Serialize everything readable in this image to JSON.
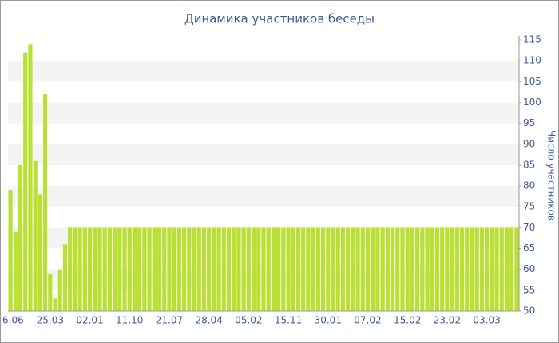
{
  "chart_data": {
    "type": "bar",
    "title": "Динамика участников беседы",
    "y_axis_label": "Число участников",
    "categories": [
      "6.06",
      null,
      null,
      null,
      null,
      null,
      null,
      null,
      "25.03",
      null,
      null,
      null,
      null,
      null,
      null,
      null,
      "02.01",
      null,
      null,
      null,
      null,
      null,
      null,
      null,
      "11.10",
      null,
      null,
      null,
      null,
      null,
      null,
      null,
      "21.07",
      null,
      null,
      null,
      null,
      null,
      null,
      null,
      "28.04",
      null,
      null,
      null,
      null,
      null,
      null,
      null,
      "05.02",
      null,
      null,
      null,
      null,
      null,
      null,
      null,
      "15.11",
      null,
      null,
      null,
      null,
      null,
      null,
      null,
      "30.01",
      null,
      null,
      null,
      null,
      null,
      null,
      null,
      "07.02",
      null,
      null,
      null,
      null,
      null,
      null,
      null,
      "15.02",
      null,
      null,
      null,
      null,
      null,
      null,
      null,
      "23.02",
      null,
      null,
      null,
      null,
      null,
      null,
      null,
      "03.03",
      null,
      null,
      null,
      null,
      null,
      null
    ],
    "values": [
      79,
      69,
      85,
      112,
      114,
      86,
      78,
      102,
      59,
      53,
      60,
      66,
      70,
      70,
      70,
      70,
      70,
      70,
      70,
      70,
      70,
      70,
      70,
      70,
      70,
      70,
      70,
      70,
      70,
      70,
      70,
      70,
      70,
      70,
      70,
      70,
      70,
      70,
      70,
      70,
      70,
      70,
      70,
      70,
      70,
      70,
      70,
      70,
      70,
      70,
      70,
      70,
      70,
      70,
      70,
      70,
      70,
      70,
      70,
      70,
      70,
      70,
      70,
      70,
      70,
      70,
      70,
      70,
      70,
      70,
      70,
      70,
      70,
      70,
      70,
      70,
      70,
      70,
      70,
      70,
      70,
      70,
      70,
      70,
      70,
      70,
      70,
      70,
      70,
      70,
      70,
      70,
      70,
      70,
      70,
      70,
      70,
      70,
      70,
      70,
      70,
      70,
      70
    ],
    "color": "#bbe035",
    "ylim": [
      50,
      115
    ],
    "yticks": [
      50,
      55,
      60,
      65,
      70,
      75,
      80,
      85,
      90,
      95,
      100,
      105,
      110,
      115
    ],
    "grid": true
  }
}
